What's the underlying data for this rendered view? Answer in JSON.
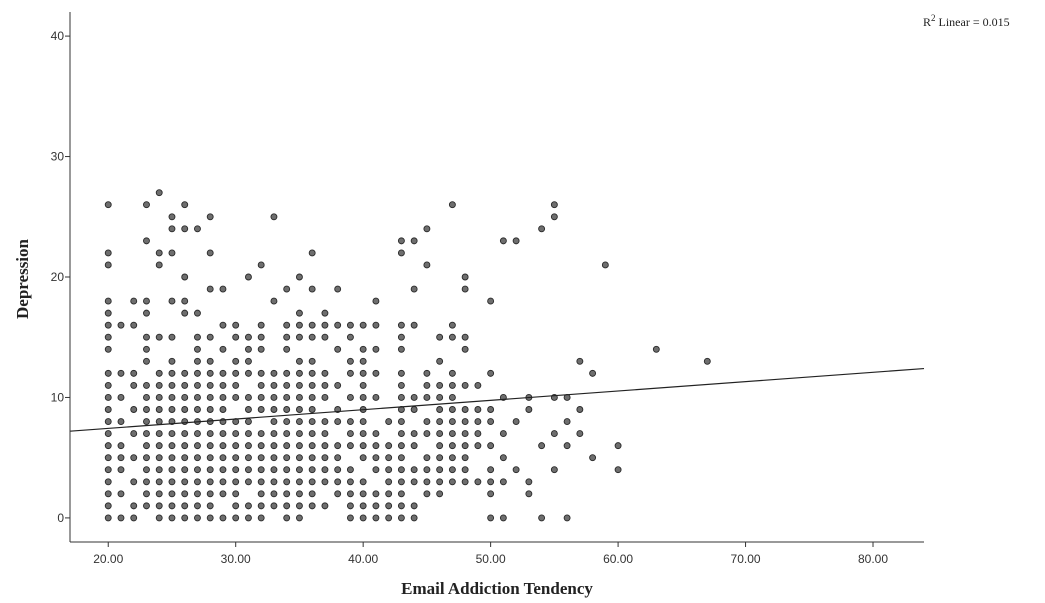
{
  "chart_data": {
    "type": "scatter",
    "xlabel": "Email Addiction Tendency",
    "ylabel": "Depression",
    "xlim": [
      17,
      84
    ],
    "ylim": [
      -2,
      42
    ],
    "x_ticks": [
      "20.00",
      "30.00",
      "40.00",
      "50.00",
      "60.00",
      "70.00",
      "80.00"
    ],
    "y_ticks": [
      "0",
      "10",
      "20",
      "30",
      "40"
    ],
    "fit_line": {
      "label_prefix": "R",
      "label_sup": "2",
      "label_suffix": " Linear = 0.015",
      "start": [
        17,
        7.2
      ],
      "end": [
        84,
        12.4
      ]
    },
    "points": [
      [
        20,
        26
      ],
      [
        20,
        22
      ],
      [
        20,
        21
      ],
      [
        20,
        18
      ],
      [
        20,
        17
      ],
      [
        20,
        16
      ],
      [
        20,
        15
      ],
      [
        20,
        14
      ],
      [
        20,
        12
      ],
      [
        20,
        11
      ],
      [
        20,
        10
      ],
      [
        20,
        9
      ],
      [
        20,
        8
      ],
      [
        20,
        7
      ],
      [
        20,
        6
      ],
      [
        20,
        5
      ],
      [
        20,
        4
      ],
      [
        20,
        3
      ],
      [
        20,
        2
      ],
      [
        20,
        1
      ],
      [
        20,
        0
      ],
      [
        21,
        16
      ],
      [
        21,
        12
      ],
      [
        21,
        10
      ],
      [
        21,
        8
      ],
      [
        21,
        6
      ],
      [
        21,
        5
      ],
      [
        21,
        4
      ],
      [
        21,
        2
      ],
      [
        21,
        0
      ],
      [
        22,
        18
      ],
      [
        22,
        16
      ],
      [
        22,
        12
      ],
      [
        22,
        11
      ],
      [
        22,
        9
      ],
      [
        22,
        7
      ],
      [
        22,
        5
      ],
      [
        22,
        3
      ],
      [
        22,
        1
      ],
      [
        22,
        0
      ],
      [
        23,
        26
      ],
      [
        23,
        23
      ],
      [
        23,
        18
      ],
      [
        23,
        17
      ],
      [
        23,
        15
      ],
      [
        23,
        14
      ],
      [
        23,
        13
      ],
      [
        23,
        11
      ],
      [
        23,
        10
      ],
      [
        23,
        9
      ],
      [
        23,
        8
      ],
      [
        23,
        7
      ],
      [
        23,
        6
      ],
      [
        23,
        5
      ],
      [
        23,
        4
      ],
      [
        23,
        3
      ],
      [
        23,
        2
      ],
      [
        23,
        1
      ],
      [
        24,
        27
      ],
      [
        24,
        22
      ],
      [
        24,
        21
      ],
      [
        24,
        15
      ],
      [
        24,
        12
      ],
      [
        24,
        11
      ],
      [
        24,
        10
      ],
      [
        24,
        9
      ],
      [
        24,
        8
      ],
      [
        24,
        7
      ],
      [
        24,
        6
      ],
      [
        24,
        5
      ],
      [
        24,
        4
      ],
      [
        24,
        3
      ],
      [
        24,
        2
      ],
      [
        24,
        1
      ],
      [
        24,
        0
      ],
      [
        25,
        25
      ],
      [
        25,
        24
      ],
      [
        25,
        22
      ],
      [
        25,
        18
      ],
      [
        25,
        15
      ],
      [
        25,
        13
      ],
      [
        25,
        12
      ],
      [
        25,
        11
      ],
      [
        25,
        10
      ],
      [
        25,
        9
      ],
      [
        25,
        8
      ],
      [
        25,
        7
      ],
      [
        25,
        6
      ],
      [
        25,
        5
      ],
      [
        25,
        4
      ],
      [
        25,
        3
      ],
      [
        25,
        2
      ],
      [
        25,
        1
      ],
      [
        25,
        0
      ],
      [
        26,
        26
      ],
      [
        26,
        24
      ],
      [
        26,
        20
      ],
      [
        26,
        18
      ],
      [
        26,
        17
      ],
      [
        26,
        12
      ],
      [
        26,
        11
      ],
      [
        26,
        10
      ],
      [
        26,
        9
      ],
      [
        26,
        8
      ],
      [
        26,
        7
      ],
      [
        26,
        6
      ],
      [
        26,
        5
      ],
      [
        26,
        4
      ],
      [
        26,
        3
      ],
      [
        26,
        2
      ],
      [
        26,
        1
      ],
      [
        26,
        0
      ],
      [
        27,
        24
      ],
      [
        27,
        17
      ],
      [
        27,
        15
      ],
      [
        27,
        14
      ],
      [
        27,
        13
      ],
      [
        27,
        12
      ],
      [
        27,
        11
      ],
      [
        27,
        10
      ],
      [
        27,
        9
      ],
      [
        27,
        8
      ],
      [
        27,
        7
      ],
      [
        27,
        6
      ],
      [
        27,
        5
      ],
      [
        27,
        4
      ],
      [
        27,
        3
      ],
      [
        27,
        2
      ],
      [
        27,
        1
      ],
      [
        27,
        0
      ],
      [
        28,
        25
      ],
      [
        28,
        22
      ],
      [
        28,
        19
      ],
      [
        28,
        15
      ],
      [
        28,
        13
      ],
      [
        28,
        12
      ],
      [
        28,
        11
      ],
      [
        28,
        10
      ],
      [
        28,
        9
      ],
      [
        28,
        8
      ],
      [
        28,
        7
      ],
      [
        28,
        6
      ],
      [
        28,
        5
      ],
      [
        28,
        4
      ],
      [
        28,
        3
      ],
      [
        28,
        2
      ],
      [
        28,
        1
      ],
      [
        28,
        0
      ],
      [
        29,
        19
      ],
      [
        29,
        16
      ],
      [
        29,
        14
      ],
      [
        29,
        12
      ],
      [
        29,
        11
      ],
      [
        29,
        10
      ],
      [
        29,
        9
      ],
      [
        29,
        8
      ],
      [
        29,
        7
      ],
      [
        29,
        6
      ],
      [
        29,
        5
      ],
      [
        29,
        4
      ],
      [
        29,
        3
      ],
      [
        29,
        2
      ],
      [
        29,
        0
      ],
      [
        30,
        16
      ],
      [
        30,
        15
      ],
      [
        30,
        13
      ],
      [
        30,
        12
      ],
      [
        30,
        11
      ],
      [
        30,
        10
      ],
      [
        30,
        8
      ],
      [
        30,
        7
      ],
      [
        30,
        6
      ],
      [
        30,
        5
      ],
      [
        30,
        4
      ],
      [
        30,
        3
      ],
      [
        30,
        2
      ],
      [
        30,
        1
      ],
      [
        30,
        0
      ],
      [
        31,
        20
      ],
      [
        31,
        15
      ],
      [
        31,
        14
      ],
      [
        31,
        13
      ],
      [
        31,
        12
      ],
      [
        31,
        10
      ],
      [
        31,
        9
      ],
      [
        31,
        8
      ],
      [
        31,
        7
      ],
      [
        31,
        6
      ],
      [
        31,
        5
      ],
      [
        31,
        4
      ],
      [
        31,
        3
      ],
      [
        31,
        1
      ],
      [
        31,
        0
      ],
      [
        32,
        21
      ],
      [
        32,
        16
      ],
      [
        32,
        15
      ],
      [
        32,
        14
      ],
      [
        32,
        12
      ],
      [
        32,
        11
      ],
      [
        32,
        10
      ],
      [
        32,
        9
      ],
      [
        32,
        7
      ],
      [
        32,
        6
      ],
      [
        32,
        5
      ],
      [
        32,
        4
      ],
      [
        32,
        3
      ],
      [
        32,
        2
      ],
      [
        32,
        1
      ],
      [
        32,
        0
      ],
      [
        33,
        25
      ],
      [
        33,
        18
      ],
      [
        33,
        12
      ],
      [
        33,
        11
      ],
      [
        33,
        10
      ],
      [
        33,
        9
      ],
      [
        33,
        8
      ],
      [
        33,
        7
      ],
      [
        33,
        6
      ],
      [
        33,
        5
      ],
      [
        33,
        4
      ],
      [
        33,
        3
      ],
      [
        33,
        2
      ],
      [
        33,
        1
      ],
      [
        34,
        19
      ],
      [
        34,
        16
      ],
      [
        34,
        15
      ],
      [
        34,
        14
      ],
      [
        34,
        12
      ],
      [
        34,
        11
      ],
      [
        34,
        10
      ],
      [
        34,
        9
      ],
      [
        34,
        8
      ],
      [
        34,
        7
      ],
      [
        34,
        6
      ],
      [
        34,
        5
      ],
      [
        34,
        4
      ],
      [
        34,
        3
      ],
      [
        34,
        2
      ],
      [
        34,
        1
      ],
      [
        34,
        0
      ],
      [
        35,
        20
      ],
      [
        35,
        17
      ],
      [
        35,
        16
      ],
      [
        35,
        15
      ],
      [
        35,
        13
      ],
      [
        35,
        12
      ],
      [
        35,
        11
      ],
      [
        35,
        10
      ],
      [
        35,
        9
      ],
      [
        35,
        8
      ],
      [
        35,
        7
      ],
      [
        35,
        6
      ],
      [
        35,
        5
      ],
      [
        35,
        4
      ],
      [
        35,
        3
      ],
      [
        35,
        2
      ],
      [
        35,
        1
      ],
      [
        35,
        0
      ],
      [
        36,
        22
      ],
      [
        36,
        19
      ],
      [
        36,
        16
      ],
      [
        36,
        15
      ],
      [
        36,
        13
      ],
      [
        36,
        12
      ],
      [
        36,
        11
      ],
      [
        36,
        10
      ],
      [
        36,
        9
      ],
      [
        36,
        8
      ],
      [
        36,
        7
      ],
      [
        36,
        6
      ],
      [
        36,
        5
      ],
      [
        36,
        4
      ],
      [
        36,
        3
      ],
      [
        36,
        2
      ],
      [
        36,
        1
      ],
      [
        37,
        17
      ],
      [
        37,
        16
      ],
      [
        37,
        15
      ],
      [
        37,
        12
      ],
      [
        37,
        11
      ],
      [
        37,
        10
      ],
      [
        37,
        8
      ],
      [
        37,
        7
      ],
      [
        37,
        6
      ],
      [
        37,
        5
      ],
      [
        37,
        4
      ],
      [
        37,
        3
      ],
      [
        37,
        1
      ],
      [
        38,
        19
      ],
      [
        38,
        16
      ],
      [
        38,
        14
      ],
      [
        38,
        11
      ],
      [
        38,
        9
      ],
      [
        38,
        8
      ],
      [
        38,
        6
      ],
      [
        38,
        5
      ],
      [
        38,
        4
      ],
      [
        38,
        3
      ],
      [
        38,
        2
      ],
      [
        39,
        16
      ],
      [
        39,
        15
      ],
      [
        39,
        13
      ],
      [
        39,
        12
      ],
      [
        39,
        10
      ],
      [
        39,
        8
      ],
      [
        39,
        7
      ],
      [
        39,
        6
      ],
      [
        39,
        4
      ],
      [
        39,
        3
      ],
      [
        39,
        2
      ],
      [
        39,
        1
      ],
      [
        39,
        0
      ],
      [
        40,
        16
      ],
      [
        40,
        14
      ],
      [
        40,
        13
      ],
      [
        40,
        12
      ],
      [
        40,
        11
      ],
      [
        40,
        10
      ],
      [
        40,
        9
      ],
      [
        40,
        8
      ],
      [
        40,
        7
      ],
      [
        40,
        6
      ],
      [
        40,
        5
      ],
      [
        40,
        3
      ],
      [
        40,
        2
      ],
      [
        40,
        1
      ],
      [
        40,
        0
      ],
      [
        41,
        18
      ],
      [
        41,
        16
      ],
      [
        41,
        14
      ],
      [
        41,
        12
      ],
      [
        41,
        10
      ],
      [
        41,
        7
      ],
      [
        41,
        6
      ],
      [
        41,
        5
      ],
      [
        41,
        4
      ],
      [
        41,
        2
      ],
      [
        41,
        1
      ],
      [
        41,
        0
      ],
      [
        42,
        8
      ],
      [
        42,
        6
      ],
      [
        42,
        5
      ],
      [
        42,
        4
      ],
      [
        42,
        3
      ],
      [
        42,
        2
      ],
      [
        42,
        1
      ],
      [
        42,
        0
      ],
      [
        43,
        23
      ],
      [
        43,
        22
      ],
      [
        43,
        16
      ],
      [
        43,
        15
      ],
      [
        43,
        14
      ],
      [
        43,
        12
      ],
      [
        43,
        11
      ],
      [
        43,
        10
      ],
      [
        43,
        9
      ],
      [
        43,
        8
      ],
      [
        43,
        7
      ],
      [
        43,
        6
      ],
      [
        43,
        5
      ],
      [
        43,
        4
      ],
      [
        43,
        3
      ],
      [
        43,
        2
      ],
      [
        43,
        1
      ],
      [
        43,
        0
      ],
      [
        44,
        23
      ],
      [
        44,
        19
      ],
      [
        44,
        16
      ],
      [
        44,
        10
      ],
      [
        44,
        9
      ],
      [
        44,
        7
      ],
      [
        44,
        6
      ],
      [
        44,
        4
      ],
      [
        44,
        3
      ],
      [
        44,
        1
      ],
      [
        44,
        0
      ],
      [
        45,
        24
      ],
      [
        45,
        21
      ],
      [
        45,
        12
      ],
      [
        45,
        11
      ],
      [
        45,
        10
      ],
      [
        45,
        8
      ],
      [
        45,
        7
      ],
      [
        45,
        5
      ],
      [
        45,
        4
      ],
      [
        45,
        3
      ],
      [
        45,
        2
      ],
      [
        46,
        15
      ],
      [
        46,
        13
      ],
      [
        46,
        11
      ],
      [
        46,
        10
      ],
      [
        46,
        9
      ],
      [
        46,
        8
      ],
      [
        46,
        7
      ],
      [
        46,
        6
      ],
      [
        46,
        5
      ],
      [
        46,
        4
      ],
      [
        46,
        3
      ],
      [
        46,
        2
      ],
      [
        47,
        26
      ],
      [
        47,
        16
      ],
      [
        47,
        15
      ],
      [
        47,
        12
      ],
      [
        47,
        11
      ],
      [
        47,
        10
      ],
      [
        47,
        9
      ],
      [
        47,
        8
      ],
      [
        47,
        7
      ],
      [
        47,
        6
      ],
      [
        47,
        5
      ],
      [
        47,
        4
      ],
      [
        47,
        3
      ],
      [
        48,
        20
      ],
      [
        48,
        19
      ],
      [
        48,
        15
      ],
      [
        48,
        14
      ],
      [
        48,
        11
      ],
      [
        48,
        9
      ],
      [
        48,
        8
      ],
      [
        48,
        7
      ],
      [
        48,
        6
      ],
      [
        48,
        5
      ],
      [
        48,
        4
      ],
      [
        48,
        3
      ],
      [
        49,
        11
      ],
      [
        49,
        9
      ],
      [
        49,
        8
      ],
      [
        49,
        7
      ],
      [
        49,
        6
      ],
      [
        49,
        3
      ],
      [
        50,
        18
      ],
      [
        50,
        12
      ],
      [
        50,
        9
      ],
      [
        50,
        8
      ],
      [
        50,
        6
      ],
      [
        50,
        4
      ],
      [
        50,
        3
      ],
      [
        50,
        2
      ],
      [
        50,
        0
      ],
      [
        51,
        23
      ],
      [
        51,
        10
      ],
      [
        51,
        7
      ],
      [
        51,
        5
      ],
      [
        51,
        3
      ],
      [
        51,
        0
      ],
      [
        52,
        23
      ],
      [
        52,
        8
      ],
      [
        52,
        4
      ],
      [
        53,
        10
      ],
      [
        53,
        9
      ],
      [
        53,
        3
      ],
      [
        53,
        2
      ],
      [
        54,
        24
      ],
      [
        54,
        6
      ],
      [
        54,
        0
      ],
      [
        55,
        26
      ],
      [
        55,
        25
      ],
      [
        55,
        10
      ],
      [
        55,
        7
      ],
      [
        55,
        4
      ],
      [
        56,
        10
      ],
      [
        56,
        8
      ],
      [
        56,
        6
      ],
      [
        56,
        0
      ],
      [
        57,
        13
      ],
      [
        57,
        9
      ],
      [
        57,
        7
      ],
      [
        58,
        12
      ],
      [
        58,
        5
      ],
      [
        59,
        21
      ],
      [
        60,
        6
      ],
      [
        60,
        4
      ],
      [
        63,
        14
      ],
      [
        67,
        13
      ]
    ]
  }
}
